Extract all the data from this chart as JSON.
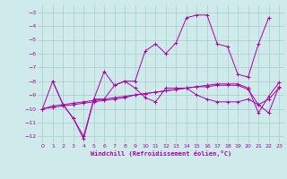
{
  "xlabel": "Windchill (Refroidissement éolien,°C)",
  "background_color": "#ceeaea",
  "line_color": "#aa00aa",
  "grid_color": "#aacccc",
  "xlim": [
    -0.5,
    23.5
  ],
  "ylim": [
    -12.5,
    -2.5
  ],
  "yticks": [
    -12,
    -11,
    -10,
    -9,
    -8,
    -7,
    -6,
    -5,
    -4,
    -3
  ],
  "xticks": [
    0,
    1,
    2,
    3,
    4,
    5,
    6,
    7,
    8,
    9,
    10,
    11,
    12,
    13,
    14,
    15,
    16,
    17,
    18,
    19,
    20,
    21,
    22,
    23
  ],
  "s1_x": [
    0,
    1,
    2,
    3,
    4,
    5,
    6,
    7,
    8,
    9,
    10,
    11,
    12,
    13,
    14,
    15,
    16,
    17,
    18,
    19,
    20,
    21,
    22,
    23
  ],
  "s1_y": [
    -10.0,
    -8.0,
    -9.7,
    -10.7,
    -12.2,
    -9.3,
    -9.3,
    -8.3,
    -8.0,
    -8.5,
    -9.2,
    -9.5,
    -8.5,
    -8.5,
    -8.5,
    -9.0,
    -9.3,
    -9.5,
    -9.5,
    -9.5,
    -9.3,
    -9.7,
    -10.3,
    -8.4
  ],
  "s2_x": [
    0,
    1,
    2,
    3,
    4,
    5,
    6,
    7,
    8,
    9,
    10,
    11,
    12,
    13,
    14,
    15,
    16,
    17,
    18,
    19,
    20,
    21,
    22,
    23
  ],
  "s2_y": [
    -10.0,
    -9.8,
    -9.7,
    -9.6,
    -9.5,
    -9.4,
    -9.3,
    -9.2,
    -9.1,
    -9.0,
    -8.9,
    -8.8,
    -8.7,
    -8.6,
    -8.5,
    -8.4,
    -8.4,
    -8.3,
    -8.3,
    -8.3,
    -8.6,
    -9.7,
    -9.3,
    -8.5
  ],
  "s3_x": [
    0,
    1,
    2,
    3,
    4,
    5,
    6,
    7,
    8,
    9,
    10,
    11,
    12,
    13,
    14,
    15,
    16,
    17,
    18,
    19,
    20,
    21,
    22,
    23
  ],
  "s3_y": [
    -10.0,
    -9.9,
    -9.8,
    -9.7,
    -9.6,
    -9.5,
    -9.4,
    -9.3,
    -9.2,
    -9.0,
    -8.9,
    -8.8,
    -8.7,
    -8.6,
    -8.5,
    -8.4,
    -8.3,
    -8.2,
    -8.2,
    -8.2,
    -8.5,
    -10.3,
    -9.1,
    -8.1
  ],
  "s4_x": [
    1,
    2,
    3,
    4,
    5,
    6,
    7,
    8,
    9,
    10,
    11,
    12,
    13,
    14,
    15,
    16,
    17,
    18,
    19,
    20,
    21,
    22
  ],
  "s4_y": [
    -8.0,
    -9.7,
    -10.7,
    -12.0,
    -9.3,
    -7.3,
    -8.3,
    -8.0,
    -8.0,
    -5.8,
    -5.3,
    -6.0,
    -5.2,
    -3.4,
    -3.2,
    -3.2,
    -5.3,
    -5.5,
    -7.5,
    -7.7,
    -5.3,
    -3.4
  ]
}
